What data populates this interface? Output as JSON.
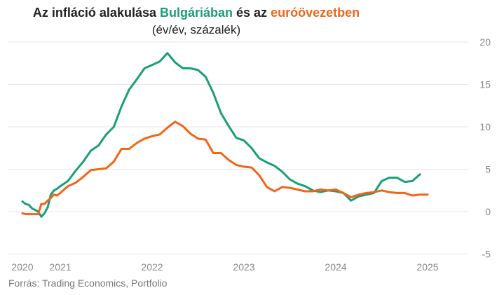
{
  "title": {
    "part1": "Az infláció alakulása ",
    "part2": "Bulgáriában",
    "part3": " és az ",
    "part4": "euróövezetben"
  },
  "subtitle": "(év/év, százalék)",
  "source": "Forrás: Trading Economics, Portfolio",
  "colors": {
    "bulgaria": "#1a9e77",
    "eurozone": "#f26418",
    "grid": "#e6e6e6",
    "axis_text": "#888888"
  },
  "chart_data": {
    "type": "line",
    "x_ticks": [
      "2020",
      "2021",
      "2022",
      "2023",
      "2024",
      "2025"
    ],
    "y_ticks": [
      20,
      15,
      10,
      5,
      0,
      -5
    ],
    "ylim": [
      -5,
      20
    ],
    "grid": true,
    "y_axis_side": "right",
    "series": [
      {
        "name": "Bulgáriában",
        "color": "#1a9e77",
        "points": [
          [
            "2020-01",
            1.2
          ],
          [
            "2020-02",
            0.9
          ],
          [
            "2020-03",
            0.8
          ],
          [
            "2020-04",
            0.4
          ],
          [
            "2020-05",
            0.2
          ],
          [
            "2020-06",
            0.0
          ],
          [
            "2020-07",
            -0.6
          ],
          [
            "2020-08",
            -0.2
          ],
          [
            "2020-09",
            0.5
          ],
          [
            "2020-10",
            2.0
          ],
          [
            "2020-11",
            2.5
          ],
          [
            "2020-12",
            2.7
          ],
          [
            "2021-01",
            3.0
          ],
          [
            "2021-02",
            3.6
          ],
          [
            "2021-03",
            4.8
          ],
          [
            "2021-04",
            5.9
          ],
          [
            "2021-05",
            7.2
          ],
          [
            "2021-06",
            7.8
          ],
          [
            "2021-07",
            9.1
          ],
          [
            "2021-08",
            10.0
          ],
          [
            "2021-09",
            12.4
          ],
          [
            "2021-10",
            14.4
          ],
          [
            "2021-11",
            15.6
          ],
          [
            "2021-12",
            16.9
          ],
          [
            "2022-01",
            17.3
          ],
          [
            "2022-02",
            17.7
          ],
          [
            "2022-03",
            18.7
          ],
          [
            "2022-04",
            17.6
          ],
          [
            "2022-05",
            16.9
          ],
          [
            "2022-06",
            16.9
          ],
          [
            "2022-07",
            16.7
          ],
          [
            "2022-08",
            15.9
          ],
          [
            "2022-09",
            14.0
          ],
          [
            "2022-10",
            11.6
          ],
          [
            "2022-11",
            10.1
          ],
          [
            "2022-12",
            8.7
          ],
          [
            "2023-01",
            8.4
          ],
          [
            "2023-02",
            7.5
          ],
          [
            "2023-03",
            6.3
          ],
          [
            "2023-04",
            5.8
          ],
          [
            "2023-05",
            5.4
          ],
          [
            "2023-06",
            4.7
          ],
          [
            "2023-07",
            3.8
          ],
          [
            "2023-08",
            3.3
          ],
          [
            "2023-09",
            3.0
          ],
          [
            "2023-10",
            2.5
          ],
          [
            "2023-11",
            2.3
          ],
          [
            "2023-12",
            2.5
          ],
          [
            "2024-01",
            2.4
          ],
          [
            "2024-02",
            2.2
          ],
          [
            "2024-03",
            1.3
          ],
          [
            "2024-04",
            1.8
          ],
          [
            "2024-05",
            2.0
          ],
          [
            "2024-06",
            2.2
          ],
          [
            "2024-07",
            3.6
          ],
          [
            "2024-08",
            4.0
          ],
          [
            "2024-09",
            4.0
          ],
          [
            "2024-10",
            3.5
          ],
          [
            "2024-11",
            3.6
          ],
          [
            "2024-12",
            4.4
          ]
        ]
      },
      {
        "name": "euróövezetben",
        "color": "#f26418",
        "points": [
          [
            "2020-01",
            -0.2
          ],
          [
            "2020-02",
            -0.3
          ],
          [
            "2020-03",
            -0.3
          ],
          [
            "2020-04",
            -0.3
          ],
          [
            "2020-05",
            -0.3
          ],
          [
            "2020-06",
            -0.3
          ],
          [
            "2020-07",
            0.9
          ],
          [
            "2020-08",
            0.9
          ],
          [
            "2020-09",
            1.3
          ],
          [
            "2020-10",
            1.6
          ],
          [
            "2020-11",
            2.0
          ],
          [
            "2020-12",
            1.9
          ],
          [
            "2021-01",
            2.2
          ],
          [
            "2021-02",
            3.0
          ],
          [
            "2021-03",
            3.4
          ],
          [
            "2021-04",
            4.1
          ],
          [
            "2021-05",
            4.9
          ],
          [
            "2021-06",
            5.0
          ],
          [
            "2021-07",
            5.1
          ],
          [
            "2021-08",
            5.9
          ],
          [
            "2021-09",
            7.4
          ],
          [
            "2021-10",
            7.4
          ],
          [
            "2021-11",
            8.1
          ],
          [
            "2021-12",
            8.6
          ],
          [
            "2022-01",
            8.9
          ],
          [
            "2022-02",
            9.1
          ],
          [
            "2022-03",
            9.9
          ],
          [
            "2022-04",
            10.6
          ],
          [
            "2022-05",
            10.1
          ],
          [
            "2022-06",
            9.2
          ],
          [
            "2022-07",
            8.6
          ],
          [
            "2022-08",
            8.5
          ],
          [
            "2022-09",
            6.9
          ],
          [
            "2022-10",
            6.9
          ],
          [
            "2022-11",
            6.1
          ],
          [
            "2022-12",
            5.5
          ],
          [
            "2023-01",
            5.3
          ],
          [
            "2023-02",
            5.2
          ],
          [
            "2023-03",
            4.3
          ],
          [
            "2023-04",
            2.9
          ],
          [
            "2023-05",
            2.4
          ],
          [
            "2023-06",
            2.9
          ],
          [
            "2023-07",
            2.8
          ],
          [
            "2023-08",
            2.6
          ],
          [
            "2023-09",
            2.4
          ],
          [
            "2023-10",
            2.4
          ],
          [
            "2023-11",
            2.6
          ],
          [
            "2023-12",
            2.5
          ],
          [
            "2024-01",
            2.6
          ],
          [
            "2024-02",
            2.2
          ],
          [
            "2024-03",
            1.7
          ],
          [
            "2024-04",
            2.0
          ],
          [
            "2024-05",
            2.2
          ],
          [
            "2024-06",
            2.3
          ],
          [
            "2024-07",
            2.5
          ],
          [
            "2024-08",
            2.3
          ],
          [
            "2024-09",
            2.2
          ],
          [
            "2024-10",
            2.2
          ],
          [
            "2024-11",
            1.9
          ],
          [
            "2024-12",
            2.0
          ],
          [
            "2025-01",
            2.0
          ]
        ]
      }
    ]
  }
}
